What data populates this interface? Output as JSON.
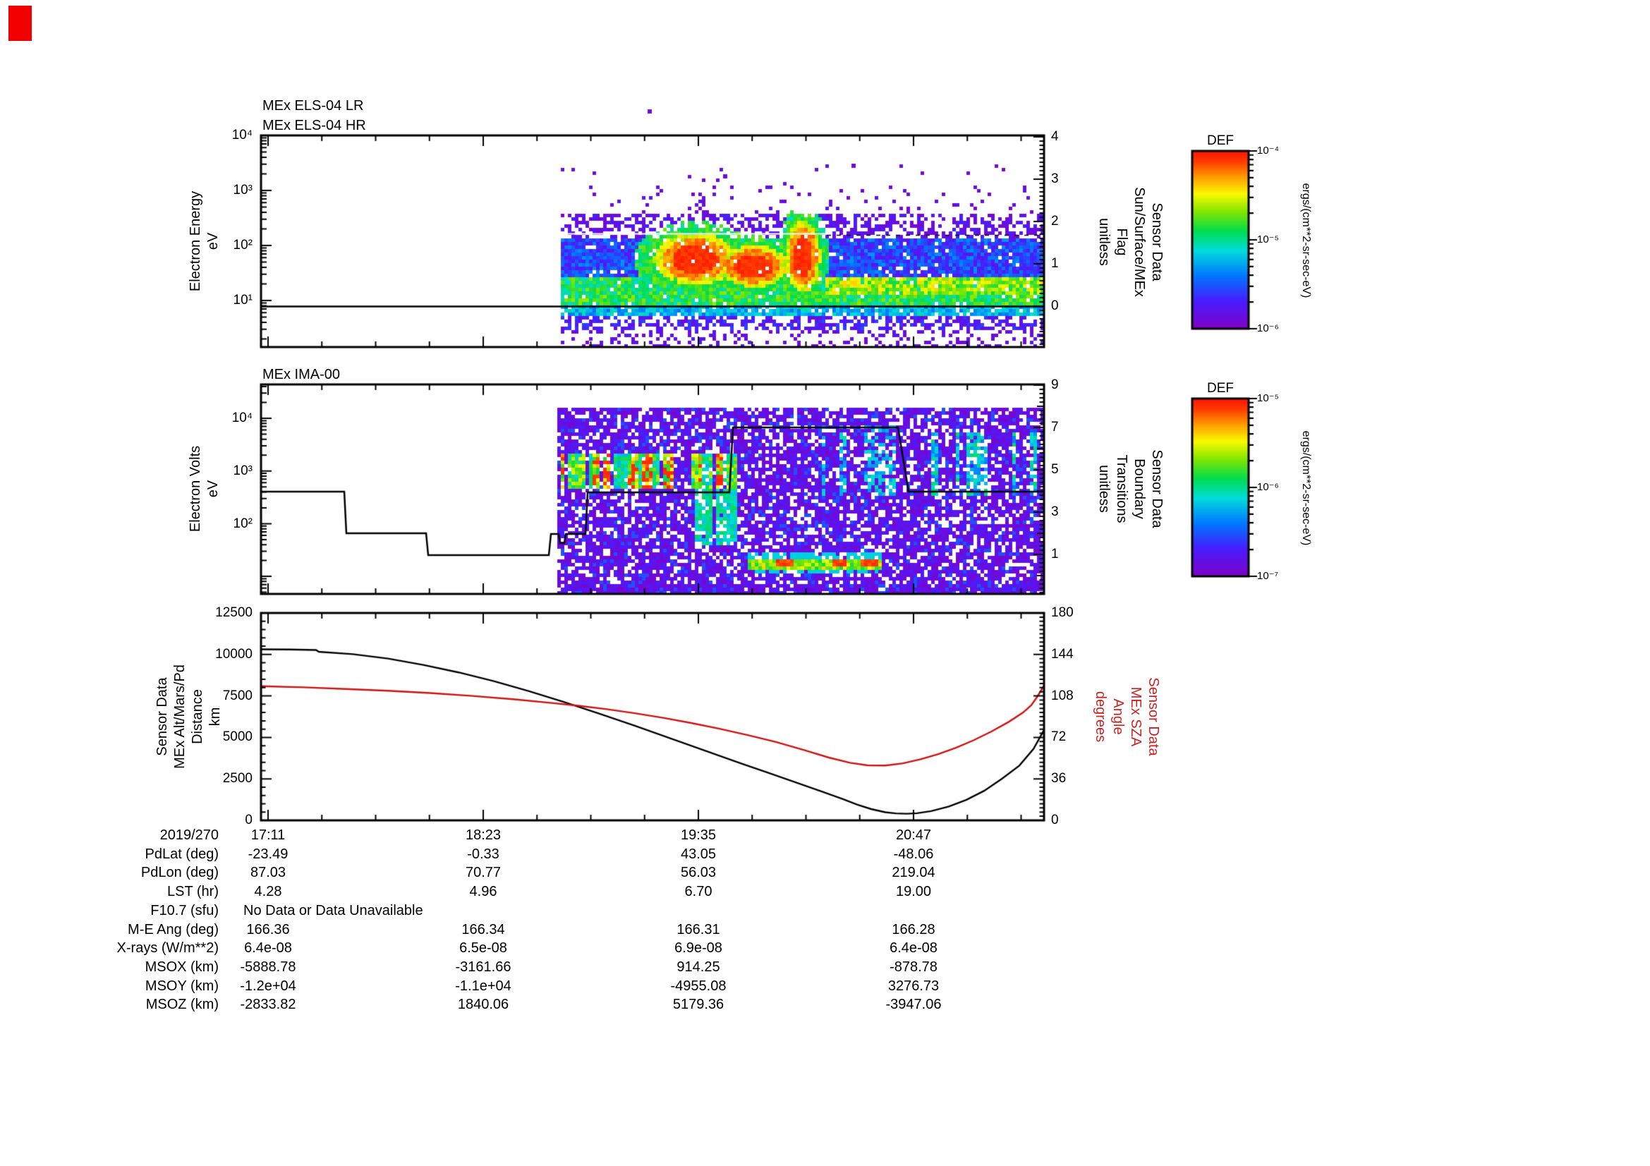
{
  "meta": {
    "description": "Mars Express plasma / ephemeris summary plot, day 2019/270",
    "red_marker_color": "#f20000",
    "background": "#ffffff",
    "sza_color": "#cc2222",
    "alt_color": "#000000"
  },
  "panel_els": {
    "titles": [
      "MEx ELS-04 LR",
      "MEx ELS-04 HR"
    ],
    "y_label": "Electron Energy\neV",
    "y_ticks": [
      "10⁴",
      "10³",
      "10²",
      "10¹"
    ],
    "right_label": "Sensor Data\nSun/Surface/MEx\nFlag\nunitless",
    "right_ticks": [
      "4",
      "3",
      "2",
      "1",
      "0"
    ]
  },
  "panel_ima": {
    "title": "MEx IMA-00",
    "y_label": "Electron Volts\neV",
    "y_ticks": [
      "10⁴",
      "10³",
      "10²"
    ],
    "right_label": "Sensor Data\nBoundary\nTransitions\nunitless",
    "right_ticks": [
      "9",
      "7",
      "5",
      "3",
      "1"
    ]
  },
  "panel_lines": {
    "y_label": "Sensor Data\nMEx Alt/Mars/Pd\nDistance\nkm",
    "y_ticks": [
      "12500",
      "10000",
      "7500",
      "5000",
      "2500",
      "0"
    ],
    "right_label": "Sensor Data\nMEx SZA\nAngle\ndegrees",
    "right_ticks": [
      "180",
      "144",
      "108",
      "72",
      "36",
      "0"
    ]
  },
  "colorbars": [
    {
      "title": "DEF",
      "ticks": [
        "10⁻⁴",
        "10⁻⁵",
        "10⁻⁶"
      ],
      "unit": "ergs/(cm**2-sr-sec-eV)"
    },
    {
      "title": "DEF",
      "ticks": [
        "10⁻⁵",
        "10⁻⁶",
        "10⁻⁷"
      ],
      "unit": "ergs/(cm**2-sr-sec-eV)"
    }
  ],
  "table": {
    "date_label": "2019/270",
    "time_ticks": [
      "17:11",
      "18:23",
      "19:35",
      "20:47"
    ],
    "rows": [
      {
        "label": "PdLat (deg)",
        "values": [
          "-23.49",
          "-0.33",
          "43.05",
          "-48.06"
        ]
      },
      {
        "label": "PdLon (deg)",
        "values": [
          "87.03",
          "70.77",
          "56.03",
          "219.04"
        ]
      },
      {
        "label": "LST (hr)",
        "values": [
          "4.28",
          "4.96",
          "6.70",
          "19.00"
        ]
      },
      {
        "label": "F10.7 (sfu)",
        "values": [],
        "note": "No Data or Data Unavailable"
      },
      {
        "label": "M-E Ang (deg)",
        "values": [
          "166.36",
          "166.34",
          "166.31",
          "166.28"
        ]
      },
      {
        "label": "X-rays (W/m**2)",
        "values": [
          "6.4e-08",
          "6.5e-08",
          "6.9e-08",
          "6.4e-08"
        ]
      },
      {
        "label": "MSOX (km)",
        "values": [
          "-5888.78",
          "-3161.66",
          "914.25",
          "-878.78"
        ]
      },
      {
        "label": "MSOY (km)",
        "values": [
          "-1.2e+04",
          "-1.1e+04",
          "-4955.08",
          "3276.73"
        ]
      },
      {
        "label": "MSOZ (km)",
        "values": [
          "-2833.82",
          "1840.06",
          "5179.36",
          "-3947.06"
        ]
      }
    ]
  },
  "chart_data": [
    {
      "type": "heatmap",
      "id": "els-spectrogram",
      "title": "MEx ELS-04 LR / MEx ELS-04 HR",
      "ylabel": "Electron Energy (eV)",
      "ylim_log": [
        1,
        10000
      ],
      "zlabel": "DEF",
      "z_units": "ergs/(cm**2-sr-sec-eV)",
      "zlim": [
        "1e-6",
        "1e-4"
      ],
      "right_axis": {
        "label": "Sensor Data Sun/Surface/MEx Flag (unitless)",
        "range": [
          0,
          4
        ]
      },
      "x_ticks": [
        "17:11",
        "18:23",
        "19:35",
        "20:47"
      ],
      "note": "Data present only from ~17:50 onward; broad ~10 eV green band, dense blue 30-300 eV, intense red flux blobs near 19:20-19:50 and ~20:05, flag line at 0",
      "render": {
        "data_x": [
          795,
          1480
        ],
        "bands": [
          {
            "y0": 230,
            "y1": 262,
            "density": 0.015,
            "t0": 0.03,
            "t1": 0.1
          },
          {
            "y0": 262,
            "y1": 300,
            "density": 0.07,
            "t0": 0.03,
            "t1": 0.12
          },
          {
            "y0": 300,
            "y1": 336,
            "density": 0.5,
            "t0": 0.03,
            "t1": 0.16
          },
          {
            "y0": 336,
            "y1": 392,
            "density": 0.93,
            "t0": 0.1,
            "t1": 0.34
          },
          {
            "y0": 392,
            "y1": 430,
            "density": 0.97,
            "t0": 0.44,
            "t1": 0.68
          },
          {
            "y0": 430,
            "y1": 444,
            "density": 0.9,
            "t0": 0.28,
            "t1": 0.48
          },
          {
            "y0": 444,
            "y1": 468,
            "density": 0.5,
            "t0": 0.05,
            "t1": 0.22
          },
          {
            "y0": 468,
            "y1": 490,
            "density": 0.3,
            "t0": 0.03,
            "t1": 0.13
          }
        ],
        "blobs": [
          {
            "cx": 985,
            "cy": 367,
            "rx": 60,
            "ry": 37
          },
          {
            "cx": 1068,
            "cy": 377,
            "rx": 50,
            "ry": 30
          },
          {
            "cx": 1138,
            "cy": 363,
            "rx": 25,
            "ry": 52
          }
        ],
        "enhance": {
          "x0": 1170,
          "x1": 1480,
          "y0": 392,
          "y1": 416,
          "tmin": 0.55,
          "tmax": 0.8
        },
        "dots": [
          [
            918,
            155
          ],
          [
            1025,
            247
          ],
          [
            1207,
            232
          ]
        ],
        "flag_line_y": 434,
        "white_line": {
          "y": 331,
          "x0": 805,
          "x1": 1172
        },
        "dash_line": {
          "y": 333,
          "x0": 1172,
          "x1": 1478
        }
      }
    },
    {
      "type": "heatmap",
      "id": "ima-spectrogram",
      "title": "MEx IMA-00",
      "ylabel": "Electron Volts (eV)",
      "ylim_log": [
        5,
        30000
      ],
      "zlabel": "DEF",
      "z_units": "ergs/(cm**2-sr-sec-eV)",
      "zlim": [
        "1e-7",
        "1e-5"
      ],
      "right_axis": {
        "label": "Sensor Data Boundary Transitions (unitless)",
        "range": [
          0,
          9
        ]
      },
      "x_ticks": [
        "17:11",
        "18:23",
        "19:35",
        "20:47"
      ],
      "note": "Sparse violet counts everywhere; striped cyan/green/red band near 1 keV before ~19:45; yellow/red low-energy streak near 20:20; stepped boundary-transition line (4 -> 7 -> 4)",
      "render": {
        "data_x": [
          790,
          1480
        ],
        "base": {
          "y0": 578,
          "y1": 842,
          "density": 0.78,
          "t0": 0.02,
          "t1": 0.17
        },
        "stripes": {
          "x0": 795,
          "x1": 1042,
          "y0": 642,
          "y1": 690,
          "redY0": 666,
          "redY1": 686
        },
        "plumes": {
          "x0": 975,
          "x1": 1042,
          "y0": 640,
          "y1": 772
        },
        "stripes2": {
          "x0": 1305,
          "x1": 1470,
          "y0": 612,
          "y1": 700
        },
        "scatter": {
          "x0": 1150,
          "x1": 1300,
          "y0": 600,
          "y1": 700
        },
        "streak": {
          "x0": 1060,
          "x1": 1250,
          "y0": 789,
          "y1": 807,
          "redXs": [
            [
              1100,
              1122
            ],
            [
              1176,
              1198
            ],
            [
              1218,
              1242
            ]
          ]
        },
        "boundary_path": [
          [
            370,
            697
          ],
          [
            488,
            697
          ],
          [
            491,
            756
          ],
          [
            604,
            756
          ],
          [
            607,
            787
          ],
          [
            778,
            787
          ],
          [
            781,
            757
          ],
          [
            792,
            757
          ],
          [
            794,
            770
          ],
          [
            800,
            770
          ],
          [
            802,
            757
          ],
          [
            830,
            757
          ],
          [
            833,
            698
          ],
          [
            1034,
            698
          ],
          [
            1039,
            606
          ],
          [
            1273,
            606
          ],
          [
            1288,
            697
          ],
          [
            1480,
            697
          ]
        ]
      }
    },
    {
      "type": "line",
      "id": "ephemeris-lines",
      "x_ticks": [
        "17:11",
        "18:23",
        "19:35",
        "20:47"
      ],
      "series": [
        {
          "name": "Sensor Data MEx Alt/Mars/Pd Distance",
          "units": "km",
          "axis": "left",
          "ylim": [
            0,
            12500
          ],
          "color": "#000000",
          "points": [
            [
              370,
              10310
            ],
            [
              410,
              10300
            ],
            [
              448,
              10270
            ],
            [
              452,
              10160
            ],
            [
              500,
              10020
            ],
            [
              550,
              9750
            ],
            [
              600,
              9370
            ],
            [
              650,
              8920
            ],
            [
              700,
              8390
            ],
            [
              750,
              7790
            ],
            [
              800,
              7130
            ],
            [
              850,
              6430
            ],
            [
              900,
              5700
            ],
            [
              950,
              4950
            ],
            [
              1000,
              4190
            ],
            [
              1050,
              3440
            ],
            [
              1090,
              2850
            ],
            [
              1130,
              2260
            ],
            [
              1165,
              1740
            ],
            [
              1195,
              1280
            ],
            [
              1215,
              950
            ],
            [
              1235,
              680
            ],
            [
              1255,
              490
            ],
            [
              1270,
              420
            ],
            [
              1285,
              400
            ],
            [
              1300,
              430
            ],
            [
              1320,
              560
            ],
            [
              1345,
              830
            ],
            [
              1370,
              1240
            ],
            [
              1395,
              1780
            ],
            [
              1420,
              2500
            ],
            [
              1445,
              3300
            ],
            [
              1465,
              4300
            ],
            [
              1480,
              5450
            ]
          ]
        },
        {
          "name": "Sensor Data MEx SZA Angle",
          "units": "degrees",
          "axis": "right",
          "ylim": [
            0,
            180
          ],
          "color": "#cc1111",
          "points": [
            [
              370,
              116.5
            ],
            [
              430,
              115.5
            ],
            [
              490,
              114
            ],
            [
              550,
              112.5
            ],
            [
              610,
              110.5
            ],
            [
              670,
              108
            ],
            [
              730,
              105
            ],
            [
              780,
              102
            ],
            [
              820,
              99.5
            ],
            [
              860,
              96.5
            ],
            [
              900,
              93
            ],
            [
              940,
              89
            ],
            [
              980,
              84.5
            ],
            [
              1020,
              79.5
            ],
            [
              1060,
              74
            ],
            [
              1100,
              68
            ],
            [
              1140,
              61
            ],
            [
              1175,
              54.5
            ],
            [
              1205,
              50
            ],
            [
              1230,
              47.8
            ],
            [
              1255,
              47.6
            ],
            [
              1280,
              49.5
            ],
            [
              1305,
              53
            ],
            [
              1330,
              57.5
            ],
            [
              1355,
              63
            ],
            [
              1380,
              69.5
            ],
            [
              1405,
              77
            ],
            [
              1430,
              85.5
            ],
            [
              1450,
              93.5
            ],
            [
              1462,
              100
            ],
            [
              1470,
              107
            ],
            [
              1475,
              112
            ],
            [
              1480,
              117
            ]
          ]
        }
      ]
    }
  ],
  "palette": [
    [
      0,
      130,
      0,
      200
    ],
    [
      0.16,
      70,
      30,
      255
    ],
    [
      0.3,
      0,
      120,
      255
    ],
    [
      0.44,
      0,
      220,
      220
    ],
    [
      0.55,
      0,
      220,
      80
    ],
    [
      0.66,
      130,
      230,
      0
    ],
    [
      0.76,
      250,
      250,
      0
    ],
    [
      0.86,
      255,
      150,
      0
    ],
    [
      0.94,
      255,
      60,
      0
    ],
    [
      1,
      255,
      20,
      0
    ]
  ]
}
